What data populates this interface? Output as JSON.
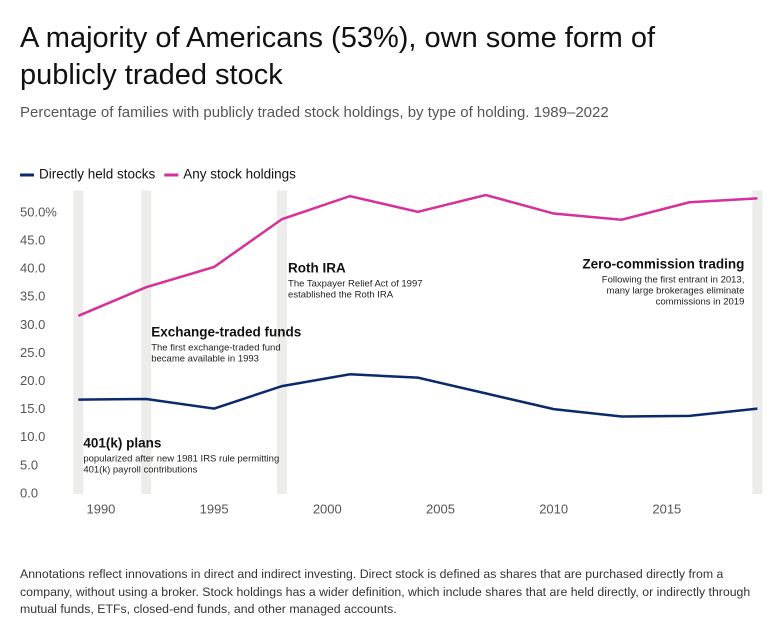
{
  "chart_data": {
    "type": "line",
    "title": "A majority of Americans (53%), own some form of publicly traded stock",
    "subtitle": "Percentage of families with publicly traded stock holdings, by type of holding. 1989–2022",
    "x": [
      1989,
      1992,
      1995,
      1998,
      2001,
      2004,
      2007,
      2010,
      2013,
      2016,
      2019
    ],
    "series": [
      {
        "name": "Directly held stocks",
        "color": "#0b2a6b",
        "values": [
          16.8,
          16.9,
          15.2,
          19.2,
          21.3,
          20.7,
          17.9,
          15.1,
          13.8,
          13.9,
          15.2
        ]
      },
      {
        "name": "Any stock holdings",
        "color": "#d6309a",
        "values": [
          31.7,
          36.8,
          40.4,
          48.9,
          53.0,
          50.2,
          53.2,
          49.9,
          48.8,
          51.9,
          52.6
        ]
      }
    ],
    "xlim": [
      1988.5,
      2020
    ],
    "xticks": [
      1990,
      1995,
      2000,
      2005,
      2010,
      2015
    ],
    "ylim": [
      0,
      54
    ],
    "yticks": [
      {
        "value": 0,
        "label": "0.0"
      },
      {
        "value": 5,
        "label": "5.0"
      },
      {
        "value": 10,
        "label": "10.0"
      },
      {
        "value": 15,
        "label": "15.0"
      },
      {
        "value": 20,
        "label": "20.0"
      },
      {
        "value": 25,
        "label": "25.0"
      },
      {
        "value": 30,
        "label": "30.0"
      },
      {
        "value": 35,
        "label": "35.0"
      },
      {
        "value": 40,
        "label": "40.0"
      },
      {
        "value": 45,
        "label": "45.0"
      },
      {
        "value": 50,
        "label": "50.0%"
      }
    ],
    "grid": false,
    "legend": "top-left",
    "annotations": [
      {
        "x": 1989,
        "title": "401(k) plans",
        "lines": [
          "popularized after new 1981 IRS rule permitting",
          "401(k) payroll contributions"
        ]
      },
      {
        "x": 1992,
        "title": "Exchange-traded funds",
        "lines": [
          "The first exchange-traded fund",
          "became available in 1993"
        ]
      },
      {
        "x": 1998,
        "title": "Roth IRA",
        "lines": [
          "The Taxpayer Relief Act of 1997",
          "established the Roth IRA"
        ]
      },
      {
        "x": 2019,
        "title": "Zero-commission trading",
        "lines": [
          "Following the first entrant in 2013,",
          "many large brokerages eliminate",
          "commissions in 2019"
        ]
      }
    ],
    "note": "Annotations reflect innovations in direct and indirect investing. Direct stock is defined as shares that are purchased directly from a company, without using a broker. Stock holdings has a wider definition, which include shares that are held directly, or indirectly through mutual funds, ETFs, closed-end funds, and other managed accounts."
  }
}
